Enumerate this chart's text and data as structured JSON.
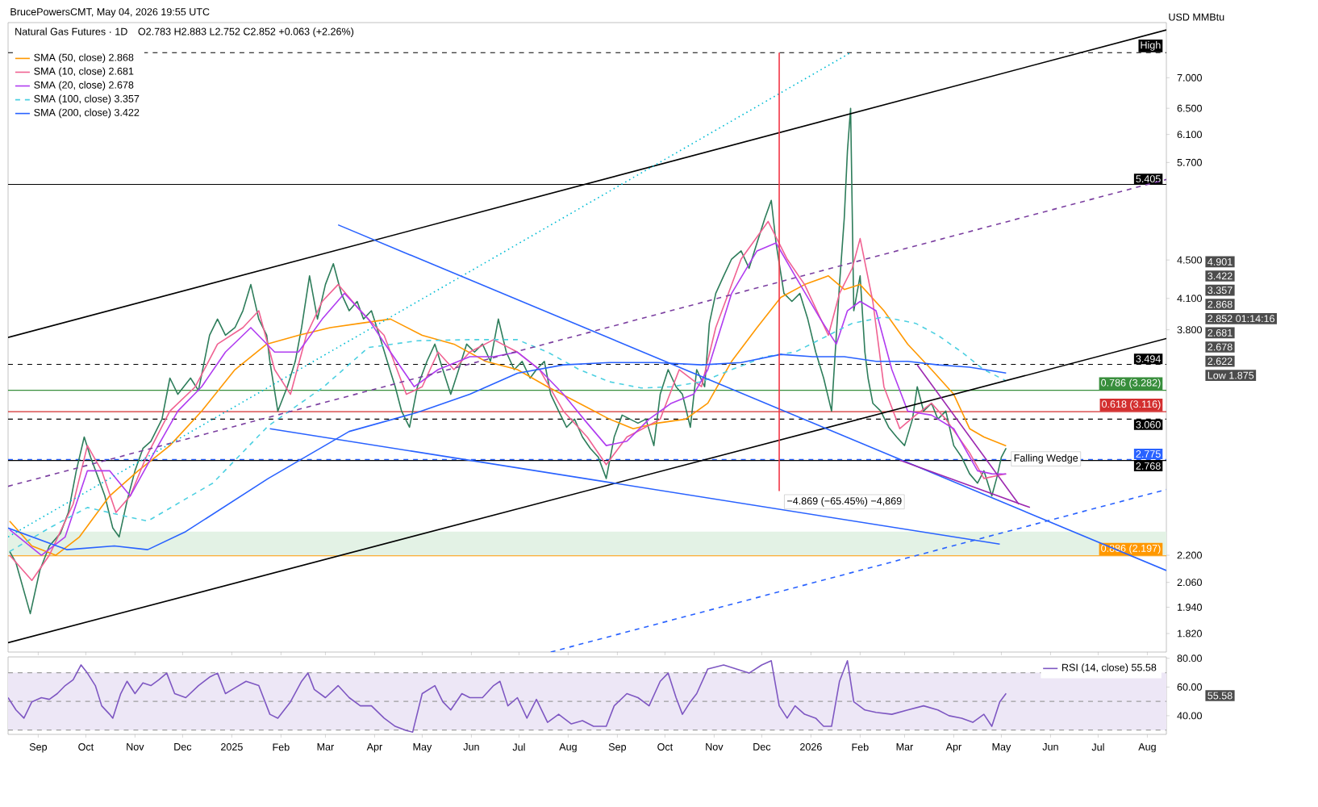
{
  "chart_data": [
    {
      "type": "line",
      "title": "Natural Gas Futures · 1D",
      "subtitle": "O2.783 H2.883 L2.752 C2.852 +0.063 (+2.26%)",
      "ylabel": "USD MMBtu",
      "log": "y",
      "legend": "top left",
      "tick_labels": "y",
      "xlim": [
        "2024-08-13",
        "2026-08-13"
      ],
      "ylim": [
        1.74,
        8.0
      ],
      "xticks": [
        {
          "value": "2024-09-01",
          "label": null
        },
        {
          "value": "2024-10-01",
          "label": null
        },
        {
          "value": "2024-11-01",
          "label": null
        },
        {
          "value": "2024-12-01",
          "label": null
        },
        {
          "value": "2025-01-01",
          "label": null
        },
        {
          "value": "2025-02-01",
          "label": null
        },
        {
          "value": "2025-03-01",
          "label": null
        },
        {
          "value": "2025-04-01",
          "label": null
        },
        {
          "value": "2025-05-01",
          "label": null
        },
        {
          "value": "2025-06-01",
          "label": null
        },
        {
          "value": "2025-07-01",
          "label": null
        },
        {
          "value": "2025-08-01",
          "label": null
        },
        {
          "value": "2025-09-01",
          "label": null
        },
        {
          "value": "2025-10-01",
          "label": null
        },
        {
          "value": "2025-11-01",
          "label": null
        },
        {
          "value": "2025-12-01",
          "label": null
        },
        {
          "value": "2026-01-01",
          "label": null
        },
        {
          "value": "2026-02-01",
          "label": null
        },
        {
          "value": "2026-03-01",
          "label": null
        },
        {
          "value": "2026-04-01",
          "label": null
        },
        {
          "value": "2026-05-01",
          "label": null
        },
        {
          "value": "2026-06-01",
          "label": null
        },
        {
          "value": "2026-07-01",
          "label": null
        },
        {
          "value": "2026-08-01",
          "label": null
        }
      ],
      "yticks": [
        {
          "value": 1.82,
          "label": "1.820"
        },
        {
          "value": 1.94,
          "label": "1.940"
        },
        {
          "value": 2.06,
          "label": "2.060"
        },
        {
          "value": 2.2,
          "label": "2.200"
        },
        {
          "value": 3.8,
          "label": "3.800"
        },
        {
          "value": 4.1,
          "label": "4.100"
        },
        {
          "value": 4.5,
          "label": "4.500"
        },
        {
          "value": 5.7,
          "label": "5.700"
        },
        {
          "value": 6.1,
          "label": "6.100"
        },
        {
          "value": 6.5,
          "label": "6.500"
        },
        {
          "value": 7.0,
          "label": "7.000"
        }
      ],
      "bands": [
        {
          "axis": "y",
          "from": 2.197,
          "to": 2.33,
          "color": "#e3f2e5"
        }
      ],
      "ref_lines": [
        {
          "axis": "y",
          "value": 7.439,
          "label": "High",
          "color": "#000000",
          "line_style": "dashed"
        },
        {
          "axis": "y",
          "value": 5.405,
          "label": "5.405",
          "color": "#000000",
          "line_style": "solid"
        },
        {
          "axis": "y",
          "value": 3.494,
          "label": "3.494",
          "color": "#000000",
          "line_style": "dashed"
        },
        {
          "axis": "y",
          "value": 3.282,
          "label": "0.786 (3.282)",
          "color": "#388e3c",
          "line_style": "solid"
        },
        {
          "axis": "y",
          "value": 3.116,
          "label": "0.618 (3.116)",
          "color": "#d32f2f",
          "line_style": "solid"
        },
        {
          "axis": "y",
          "value": 3.06,
          "label": "3.060",
          "color": "#000000",
          "line_style": "dashed"
        },
        {
          "axis": "y",
          "value": 2.775,
          "label": "2.775",
          "color": "#2962ff",
          "line_style": "dashed"
        },
        {
          "axis": "y",
          "value": 2.768,
          "label": "2.768",
          "color": "#000000",
          "line_style": "solid"
        },
        {
          "axis": "y",
          "value": 2.197,
          "label": "0.886 (2.197)",
          "color": "#ff9800",
          "line_style": "solid"
        }
      ],
      "annotations": [
        "BrucePowersCMT, May 04, 2026 19:55 UTC",
        {
          "text": "Falling Wedge",
          "x": "2026-05-04",
          "y": 2.852
        },
        {
          "text": "−4.869 (−65.45%) −4,869",
          "x": "2025-12-12",
          "y": 2.57
        },
        "4.901",
        "3.422",
        "3.357",
        "2.868",
        "2.852 01:14:16",
        "2.681",
        "2.678",
        "2.622",
        "Low 1.875"
      ],
      "series": [
        {
          "color": "#2e7d5b",
          "x": [
            "2024-08-14",
            "2024-08-18",
            "2024-08-27",
            "2024-09-02",
            "2024-09-08",
            "2024-09-15",
            "2024-09-20",
            "2024-09-25",
            "2024-09-30",
            "2024-10-04",
            "2024-10-09",
            "2024-10-13",
            "2024-10-18",
            "2024-10-22",
            "2024-10-27",
            "2024-11-01",
            "2024-11-06",
            "2024-11-11",
            "2024-11-18",
            "2024-11-23",
            "2024-11-28",
            "2024-12-06",
            "2024-12-11",
            "2024-12-18",
            "2024-12-23",
            "2024-12-28",
            "2025-01-03",
            "2025-01-08",
            "2025-01-13",
            "2025-01-18",
            "2025-01-23",
            "2025-01-25",
            "2025-01-30",
            "2025-02-05",
            "2025-02-10",
            "2025-02-14",
            "2025-02-19",
            "2025-02-24",
            "2025-03-01",
            "2025-03-06",
            "2025-03-11",
            "2025-03-16",
            "2025-03-21",
            "2025-03-25",
            "2025-03-30",
            "2025-04-04",
            "2025-04-09",
            "2025-04-14",
            "2025-04-18",
            "2025-04-23",
            "2025-04-28",
            "2025-05-04",
            "2025-05-09",
            "2025-05-14",
            "2025-05-19",
            "2025-05-24",
            "2025-05-29",
            "2025-06-03",
            "2025-06-08",
            "2025-06-13",
            "2025-06-18",
            "2025-06-23",
            "2025-06-28",
            "2025-07-03",
            "2025-07-08",
            "2025-07-12",
            "2025-07-17",
            "2025-07-21",
            "2025-07-26",
            "2025-07-31",
            "2025-08-05",
            "2025-08-10",
            "2025-08-15",
            "2025-08-20",
            "2025-08-25",
            "2025-08-30",
            "2025-09-04",
            "2025-09-09",
            "2025-09-14",
            "2025-09-19",
            "2025-09-24",
            "2025-09-28",
            "2025-10-03",
            "2025-10-08",
            "2025-10-12",
            "2025-10-17",
            "2025-10-21",
            "2025-10-26",
            "2025-10-29",
            "2025-11-02",
            "2025-11-07",
            "2025-11-12",
            "2025-11-18",
            "2025-11-23",
            "2025-11-28",
            "2025-12-03",
            "2025-12-07",
            "2025-12-10",
            "2025-12-15",
            "2025-12-20",
            "2025-12-25",
            "2025-12-30",
            "2026-01-04",
            "2026-01-09",
            "2026-01-14",
            "2026-01-19",
            "2026-01-22",
            "2026-01-24",
            "2026-01-26",
            "2026-01-28",
            "2026-02-01",
            "2026-02-04",
            "2026-02-06",
            "2026-02-09",
            "2026-02-14",
            "2026-02-19",
            "2026-02-24",
            "2026-03-01",
            "2026-03-06",
            "2026-03-09",
            "2026-03-13",
            "2026-03-18",
            "2026-03-22",
            "2026-03-27",
            "2026-04-01",
            "2026-04-06",
            "2026-04-11",
            "2026-04-16",
            "2026-04-20",
            "2026-04-25",
            "2026-04-28",
            "2026-05-01",
            "2026-05-04"
          ],
          "values": [
            2.22,
            2.16,
            1.91,
            2.12,
            2.25,
            2.32,
            2.44,
            2.7,
            2.93,
            2.79,
            2.65,
            2.54,
            2.35,
            2.3,
            2.51,
            2.7,
            2.85,
            2.9,
            3.06,
            3.38,
            3.25,
            3.38,
            3.28,
            3.75,
            3.9,
            3.75,
            3.82,
            3.98,
            4.24,
            3.9,
            3.75,
            3.52,
            3.12,
            3.31,
            3.52,
            3.82,
            4.33,
            3.9,
            4.24,
            4.46,
            4.15,
            3.98,
            4.07,
            3.9,
            3.98,
            3.75,
            3.52,
            3.31,
            3.12,
            3.0,
            3.31,
            3.52,
            3.67,
            3.45,
            3.25,
            3.45,
            3.67,
            3.6,
            3.67,
            3.52,
            3.9,
            3.6,
            3.45,
            3.52,
            3.38,
            3.45,
            3.52,
            3.25,
            3.12,
            3.0,
            3.06,
            2.93,
            2.85,
            2.79,
            2.65,
            2.93,
            3.09,
            3.06,
            3.03,
            3.06,
            2.87,
            3.25,
            3.45,
            3.31,
            3.25,
            3.0,
            3.45,
            3.31,
            3.86,
            4.15,
            4.33,
            4.51,
            4.6,
            4.41,
            4.69,
            4.98,
            5.2,
            4.69,
            4.15,
            4.07,
            4.15,
            3.9,
            3.6,
            3.38,
            3.12,
            4.24,
            4.98,
            5.86,
            6.5,
            3.98,
            4.33,
            3.6,
            3.38,
            3.18,
            3.12,
            3.0,
            2.93,
            2.87,
            3.06,
            3.31,
            3.12,
            3.18,
            3.06,
            3.12,
            2.87,
            2.79,
            2.68,
            2.62,
            2.7,
            2.54,
            2.65,
            2.79,
            2.852
          ]
        },
        {
          "name": "SMA (50, close) 2.868",
          "color": "#ff9800",
          "x": [
            "2024-08-14",
            "2024-08-28",
            "2024-09-12",
            "2024-09-27",
            "2024-10-16",
            "2024-11-03",
            "2024-11-23",
            "2024-12-13",
            "2025-01-03",
            "2025-01-23",
            "2025-02-12",
            "2025-03-04",
            "2025-03-23",
            "2025-04-11",
            "2025-05-01",
            "2025-05-21",
            "2025-06-10",
            "2025-06-30",
            "2025-07-19",
            "2025-08-08",
            "2025-08-27",
            "2025-09-11",
            "2025-09-26",
            "2025-10-14",
            "2025-10-28",
            "2025-11-12",
            "2025-11-28",
            "2025-12-13",
            "2025-12-28",
            "2026-01-12",
            "2026-01-22",
            "2026-02-01",
            "2026-02-16",
            "2026-03-03",
            "2026-03-18",
            "2026-04-01",
            "2026-04-11",
            "2026-04-20",
            "2026-05-04"
          ],
          "values": [
            2.39,
            2.25,
            2.2,
            2.3,
            2.54,
            2.7,
            2.87,
            3.12,
            3.45,
            3.67,
            3.75,
            3.82,
            3.86,
            3.9,
            3.75,
            3.67,
            3.52,
            3.45,
            3.31,
            3.18,
            3.06,
            2.99,
            3.03,
            3.06,
            3.18,
            3.52,
            3.82,
            4.11,
            4.24,
            4.33,
            4.19,
            4.24,
            3.98,
            3.67,
            3.45,
            3.25,
            2.99,
            2.93,
            2.868
          ]
        },
        {
          "name": "SMA (10, close) 2.681",
          "color": "#f06292",
          "x": [
            "2024-08-14",
            "2024-08-28",
            "2024-09-08",
            "2024-09-23",
            "2024-10-02",
            "2024-10-11",
            "2024-10-20",
            "2024-10-29",
            "2024-11-08",
            "2024-11-23",
            "2024-12-09",
            "2024-12-23",
            "2025-01-08",
            "2025-01-18",
            "2025-01-28",
            "2025-02-07",
            "2025-02-17",
            "2025-02-27",
            "2025-03-09",
            "2025-03-23",
            "2025-04-07",
            "2025-04-21",
            "2025-05-01",
            "2025-05-11",
            "2025-05-21",
            "2025-05-31",
            "2025-06-15",
            "2025-06-30",
            "2025-07-14",
            "2025-07-29",
            "2025-08-13",
            "2025-08-25",
            "2025-09-07",
            "2025-09-17",
            "2025-09-28",
            "2025-10-10",
            "2025-10-24",
            "2025-11-02",
            "2025-11-18",
            "2025-12-05",
            "2025-12-17",
            "2025-12-28",
            "2026-01-12",
            "2026-01-19",
            "2026-01-27",
            "2026-02-01",
            "2026-02-09",
            "2026-02-16",
            "2026-02-26",
            "2026-03-08",
            "2026-03-18",
            "2026-03-27",
            "2026-04-11",
            "2026-04-20",
            "2026-05-04"
          ],
          "values": [
            2.2,
            2.07,
            2.2,
            2.49,
            2.87,
            2.7,
            2.44,
            2.54,
            2.79,
            3.12,
            3.31,
            3.67,
            3.82,
            3.98,
            3.45,
            3.25,
            3.75,
            4.07,
            4.24,
            3.98,
            3.75,
            3.25,
            3.31,
            3.6,
            3.45,
            3.6,
            3.71,
            3.6,
            3.45,
            3.12,
            2.93,
            2.74,
            2.93,
            2.99,
            3.06,
            3.45,
            3.31,
            3.82,
            4.51,
            4.94,
            4.51,
            4.24,
            3.75,
            4.15,
            4.41,
            4.74,
            4.07,
            3.31,
            2.99,
            3.09,
            3.18,
            3.06,
            2.82,
            2.65,
            2.681
          ]
        },
        {
          "name": "SMA (20, close) 2.678",
          "color": "#b03cf0",
          "x": [
            "2024-08-14",
            "2024-09-03",
            "2024-09-18",
            "2024-10-02",
            "2024-10-16",
            "2024-10-29",
            "2024-11-13",
            "2024-11-28",
            "2024-12-13",
            "2024-12-28",
            "2025-01-13",
            "2025-01-28",
            "2025-02-12",
            "2025-02-27",
            "2025-03-13",
            "2025-03-28",
            "2025-04-11",
            "2025-04-26",
            "2025-05-11",
            "2025-05-31",
            "2025-06-15",
            "2025-06-30",
            "2025-07-14",
            "2025-07-29",
            "2025-08-13",
            "2025-08-25",
            "2025-09-07",
            "2025-09-21",
            "2025-10-05",
            "2025-10-19",
            "2025-10-28",
            "2025-11-12",
            "2025-11-28",
            "2025-12-10",
            "2025-12-22",
            "2026-01-07",
            "2026-01-17",
            "2026-01-24",
            "2026-02-01",
            "2026-02-11",
            "2026-02-21",
            "2026-03-03",
            "2026-03-18",
            "2026-04-01",
            "2026-04-16",
            "2026-04-25",
            "2026-05-04"
          ],
          "values": [
            2.34,
            2.2,
            2.3,
            2.7,
            2.7,
            2.54,
            2.82,
            3.12,
            3.31,
            3.6,
            3.82,
            3.6,
            3.6,
            3.9,
            4.15,
            3.9,
            3.6,
            3.31,
            3.45,
            3.56,
            3.56,
            3.6,
            3.45,
            3.25,
            3.03,
            2.87,
            2.9,
            3.06,
            3.18,
            3.25,
            3.45,
            4.15,
            4.6,
            4.69,
            4.33,
            3.9,
            3.67,
            3.98,
            4.07,
            3.98,
            3.45,
            3.12,
            3.09,
            2.99,
            2.7,
            2.68,
            2.678
          ]
        },
        {
          "name": "SMA (100, close) 3.357",
          "color": "#4dd0e1",
          "line_style": "dashed",
          "x": [
            "2024-08-14",
            "2024-09-08",
            "2024-10-02",
            "2024-10-25",
            "2024-11-09",
            "2024-12-20",
            "2025-01-24",
            "2025-02-28",
            "2025-03-28",
            "2025-04-28",
            "2025-05-31",
            "2025-06-30",
            "2025-07-19",
            "2025-08-08",
            "2025-08-27",
            "2025-09-16",
            "2025-10-05",
            "2025-10-24",
            "2025-11-12",
            "2025-12-03",
            "2025-12-22",
            "2026-01-12",
            "2026-01-27",
            "2026-02-16",
            "2026-03-08",
            "2026-03-22",
            "2026-04-06",
            "2026-04-20",
            "2026-05-04"
          ],
          "values": [
            2.22,
            2.35,
            2.47,
            2.42,
            2.39,
            2.62,
            3.01,
            3.31,
            3.64,
            3.7,
            3.71,
            3.71,
            3.6,
            3.45,
            3.35,
            3.3,
            3.31,
            3.35,
            3.45,
            3.56,
            3.6,
            3.75,
            3.86,
            3.92,
            3.86,
            3.75,
            3.6,
            3.45,
            3.357
          ]
        },
        {
          "name": "SMA (200, close) 3.422",
          "color": "#2962ff",
          "x": [
            "2024-08-13",
            "2024-09-19",
            "2024-10-19",
            "2024-11-09",
            "2024-12-03",
            "2025-01-24",
            "2025-03-16",
            "2025-04-28",
            "2025-05-31",
            "2025-06-30",
            "2025-07-29",
            "2025-08-27",
            "2025-09-26",
            "2025-10-24",
            "2025-11-18",
            "2025-12-13",
            "2026-01-02",
            "2026-01-22",
            "2026-02-11",
            "2026-03-03",
            "2026-03-22",
            "2026-04-11",
            "2026-05-04"
          ],
          "values": [
            2.35,
            2.23,
            2.25,
            2.23,
            2.33,
            2.65,
            2.97,
            3.11,
            3.25,
            3.42,
            3.49,
            3.51,
            3.51,
            3.49,
            3.51,
            3.58,
            3.56,
            3.56,
            3.52,
            3.52,
            3.49,
            3.47,
            3.422
          ]
        },
        {
          "color": "#000000",
          "x": [
            "2024-08-13",
            "2026-08-13"
          ],
          "values": [
            3.73,
            7.86
          ]
        },
        {
          "color": "#000000",
          "x": [
            "2024-08-13",
            "2026-08-13"
          ],
          "values": [
            1.78,
            3.72
          ]
        },
        {
          "color": "#7b3fa0",
          "line_style": "dashed",
          "x": [
            "2024-08-13",
            "2026-08-13"
          ],
          "values": [
            2.6,
            5.47
          ]
        },
        {
          "color": "#00bcd4",
          "line_style": "dotted",
          "x": [
            "2024-08-13",
            "2026-01-26"
          ],
          "values": [
            2.3,
            7.439
          ]
        },
        {
          "color": "#2962ff",
          "x": [
            "2025-03-09",
            "2026-08-13"
          ],
          "values": [
            4.9,
            2.12
          ]
        },
        {
          "color": "#2962ff",
          "x": [
            "2025-01-25",
            "2026-04-30"
          ],
          "values": [
            2.99,
            2.26
          ]
        },
        {
          "color": "#2962ff",
          "line_style": "dashed",
          "x": [
            "2025-07-21",
            "2026-08-13"
          ],
          "values": [
            1.74,
            2.58
          ]
        },
        {
          "color": "#9c27b0",
          "x": [
            "2026-03-09",
            "2026-05-12"
          ],
          "values": [
            3.49,
            2.49
          ]
        },
        {
          "color": "#9c27b0",
          "x": [
            "2026-02-26",
            "2026-05-19"
          ],
          "values": [
            2.77,
            2.47
          ]
        },
        {
          "color": "#f23645",
          "x": [
            "2025-12-12",
            "2025-12-12"
          ],
          "values": [
            7.439,
            2.57
          ]
        }
      ]
    },
    {
      "type": "line",
      "legend": "top right",
      "xlim": [
        "2024-08-13",
        "2026-08-13"
      ],
      "ylim": [
        27,
        81
      ],
      "xticks": [
        {
          "value": "2024-09-01",
          "label": "Sep"
        },
        {
          "value": "2024-10-01",
          "label": "Oct"
        },
        {
          "value": "2024-11-01",
          "label": "Nov"
        },
        {
          "value": "2024-12-01",
          "label": "Dec"
        },
        {
          "value": "2025-01-01",
          "label": "2025"
        },
        {
          "value": "2025-02-01",
          "label": "Feb"
        },
        {
          "value": "2025-03-01",
          "label": "Mar"
        },
        {
          "value": "2025-04-01",
          "label": "Apr"
        },
        {
          "value": "2025-05-01",
          "label": "May"
        },
        {
          "value": "2025-06-01",
          "label": "Jun"
        },
        {
          "value": "2025-07-01",
          "label": "Jul"
        },
        {
          "value": "2025-08-01",
          "label": "Aug"
        },
        {
          "value": "2025-09-01",
          "label": "Sep"
        },
        {
          "value": "2025-10-01",
          "label": "Oct"
        },
        {
          "value": "2025-11-01",
          "label": "Nov"
        },
        {
          "value": "2025-12-01",
          "label": "Dec"
        },
        {
          "value": "2026-01-01",
          "label": "2026"
        },
        {
          "value": "2026-02-01",
          "label": "Feb"
        },
        {
          "value": "2026-03-01",
          "label": "Mar"
        },
        {
          "value": "2026-04-01",
          "label": "Apr"
        },
        {
          "value": "2026-05-01",
          "label": "May"
        },
        {
          "value": "2026-06-01",
          "label": "Jun"
        },
        {
          "value": "2026-07-01",
          "label": "Jul"
        },
        {
          "value": "2026-08-01",
          "label": "Aug"
        }
      ],
      "yticks": [
        {
          "value": 40,
          "label": "40.00"
        },
        {
          "value": 60,
          "label": "60.00"
        },
        {
          "value": 80,
          "label": "80.00"
        }
      ],
      "bands": [
        {
          "axis": "y",
          "from": 30,
          "to": 70,
          "color": "#ede7f6"
        }
      ],
      "ref_lines": [
        {
          "axis": "y",
          "value": 70,
          "color": "#9e9e9e",
          "line_style": "dashed"
        },
        {
          "axis": "y",
          "value": 50,
          "color": "#9e9e9e",
          "line_style": "dashed"
        },
        {
          "axis": "y",
          "value": 30,
          "color": "#9e9e9e",
          "line_style": "dashed"
        }
      ],
      "annotations": [
        "55.58"
      ],
      "series": [
        {
          "name": "RSI (14, close) 55.58",
          "color": "#7e57c2",
          "x": [
            "2024-08-13",
            "2024-08-18",
            "2024-08-23",
            "2024-08-28",
            "2024-09-03",
            "2024-09-08",
            "2024-09-13",
            "2024-09-18",
            "2024-09-23",
            "2024-09-28",
            "2024-10-02",
            "2024-10-07",
            "2024-10-11",
            "2024-10-16",
            "2024-10-18",
            "2024-10-23",
            "2024-10-27",
            "2024-11-01",
            "2024-11-06",
            "2024-11-11",
            "2024-11-16",
            "2024-11-21",
            "2024-11-26",
            "2024-12-03",
            "2024-12-11",
            "2024-12-18",
            "2024-12-23",
            "2024-12-28",
            "2025-01-03",
            "2025-01-10",
            "2025-01-18",
            "2025-01-25",
            "2025-01-30",
            "2025-02-07",
            "2025-02-14",
            "2025-02-18",
            "2025-02-22",
            "2025-03-01",
            "2025-03-09",
            "2025-03-16",
            "2025-03-23",
            "2025-03-30",
            "2025-04-07",
            "2025-04-14",
            "2025-04-21",
            "2025-04-25",
            "2025-05-01",
            "2025-05-09",
            "2025-05-14",
            "2025-05-19",
            "2025-05-26",
            "2025-05-31",
            "2025-06-08",
            "2025-06-15",
            "2025-06-19",
            "2025-06-24",
            "2025-06-30",
            "2025-07-06",
            "2025-07-12",
            "2025-07-19",
            "2025-07-26",
            "2025-08-03",
            "2025-08-10",
            "2025-08-17",
            "2025-08-25",
            "2025-08-30",
            "2025-09-07",
            "2025-09-14",
            "2025-09-21",
            "2025-09-28",
            "2025-10-03",
            "2025-10-08",
            "2025-10-12",
            "2025-10-17",
            "2025-10-21",
            "2025-10-28",
            "2025-11-07",
            "2025-11-15",
            "2025-11-23",
            "2025-12-01",
            "2025-12-07",
            "2025-12-12",
            "2025-12-17",
            "2025-12-22",
            "2025-12-28",
            "2026-01-04",
            "2026-01-09",
            "2026-01-14",
            "2026-01-19",
            "2026-01-24",
            "2026-01-28",
            "2026-02-04",
            "2026-02-11",
            "2026-02-21",
            "2026-03-03",
            "2026-03-13",
            "2026-03-22",
            "2026-03-29",
            "2026-04-06",
            "2026-04-13",
            "2026-04-20",
            "2026-04-25",
            "2026-04-30",
            "2026-05-04"
          ],
          "values": [
            52.6,
            44,
            38.3,
            49.7,
            52.6,
            51.4,
            55.4,
            61,
            65,
            75.4,
            69.7,
            61,
            46.9,
            41,
            38.3,
            55.4,
            64,
            55.4,
            62.9,
            61,
            65,
            69.7,
            55.4,
            52.6,
            61,
            66.9,
            69.7,
            55.4,
            59.4,
            64,
            61,
            41,
            38.3,
            49.7,
            64,
            69.7,
            58.3,
            52.6,
            61,
            52.6,
            46.9,
            46.9,
            38.3,
            32.6,
            29.7,
            28.6,
            55.4,
            61,
            49.7,
            44,
            55.4,
            52.6,
            52.6,
            61,
            64,
            46.9,
            52.6,
            38.3,
            51.4,
            35.4,
            41,
            34.3,
            36.6,
            32.6,
            32.6,
            46.9,
            55.4,
            52.6,
            46.9,
            64,
            69.7,
            52.6,
            41,
            49.7,
            55.4,
            72.6,
            75.4,
            72.6,
            69.7,
            75.4,
            78.3,
            46.9,
            38.3,
            46.9,
            41,
            38.3,
            32.6,
            32.6,
            64,
            78.3,
            49.7,
            44,
            42.3,
            41,
            44,
            46.9,
            44,
            40,
            38.3,
            35.4,
            41,
            32.6,
            49.7,
            55.58
          ]
        }
      ]
    }
  ]
}
